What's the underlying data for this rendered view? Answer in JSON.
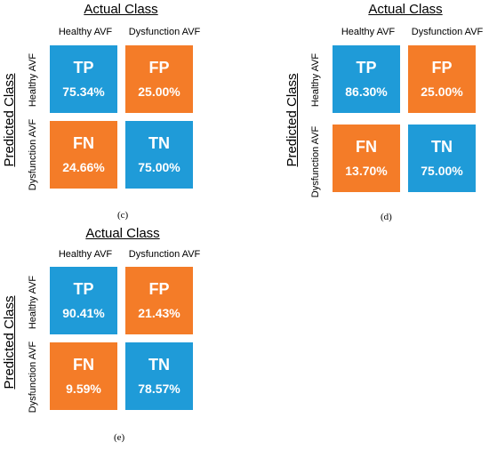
{
  "panels": [
    {
      "id": "c",
      "actual_class": "Actual Class",
      "predicted_class": "Predicted Class",
      "col_labels": [
        "Healthy AVF",
        "Dysfunction AVF"
      ],
      "row_labels": [
        "Healthy AVF",
        "Dysfunction AVF"
      ],
      "cells": [
        {
          "abbr": "TP",
          "value": "75.34%",
          "color": "#1f9bd8"
        },
        {
          "abbr": "FP",
          "value": "25.00%",
          "color": "#f47c28"
        },
        {
          "abbr": "FN",
          "value": "24.66%",
          "color": "#f47c28"
        },
        {
          "abbr": "TN",
          "value": "75.00%",
          "color": "#1f9bd8"
        }
      ],
      "caption": "(c)"
    },
    {
      "id": "d",
      "actual_class": "Actual Class",
      "predicted_class": "Predicted Class",
      "col_labels": [
        "Healthy AVF",
        "Dysfunction AVF"
      ],
      "row_labels": [
        "Healthy AVF",
        "Dysfunction AVF"
      ],
      "cells": [
        {
          "abbr": "TP",
          "value": "86.30%",
          "color": "#1f9bd8"
        },
        {
          "abbr": "FP",
          "value": "25.00%",
          "color": "#f47c28"
        },
        {
          "abbr": "FN",
          "value": "13.70%",
          "color": "#f47c28"
        },
        {
          "abbr": "TN",
          "value": "75.00%",
          "color": "#1f9bd8"
        }
      ],
      "caption": "(d)"
    },
    {
      "id": "e",
      "actual_class": "Actual Class",
      "predicted_class": "Predicted Class",
      "col_labels": [
        "Healthy AVF",
        "Dysfunction AVF"
      ],
      "row_labels": [
        "Healthy AVF",
        "Dysfunction AVF"
      ],
      "cells": [
        {
          "abbr": "TP",
          "value": "90.41%",
          "color": "#1f9bd8"
        },
        {
          "abbr": "FP",
          "value": "21.43%",
          "color": "#f47c28"
        },
        {
          "abbr": "FN",
          "value": "9.59%",
          "color": "#f47c28"
        },
        {
          "abbr": "TN",
          "value": "78.57%",
          "color": "#1f9bd8"
        }
      ],
      "caption": "(e)"
    }
  ]
}
